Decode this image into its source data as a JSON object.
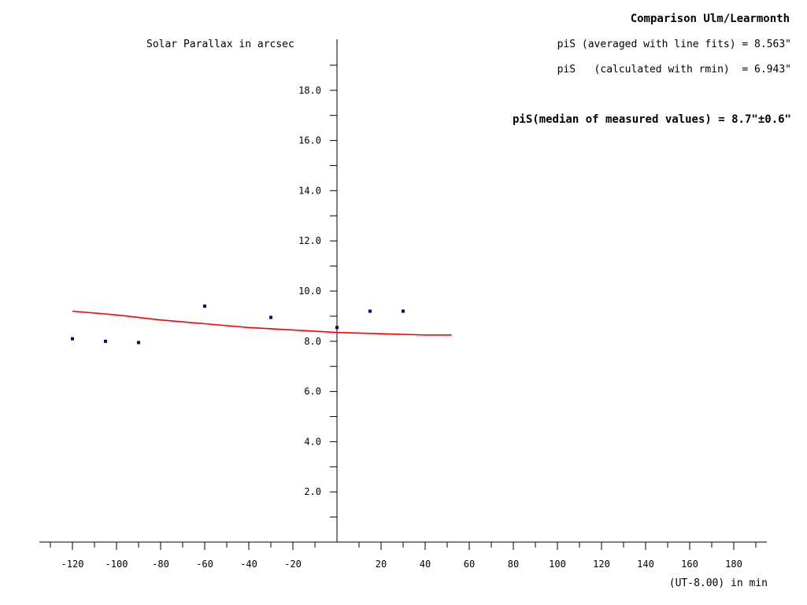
{
  "chart_data": {
    "type": "scatter",
    "title": "Comparison Ulm/Learmonth",
    "ylabel": "Solar Parallax in arcsec",
    "xlabel": "(UT-8.00) in min",
    "annotations": [
      "piS (averaged with line fits) = 8.563\"",
      "piS   (calculated with rmin)  = 6.943\"",
      "piS(median of measured values) = 8.7\"±0.6\""
    ],
    "xlim": [
      -135,
      195
    ],
    "ylim": [
      0,
      20
    ],
    "x_ticks": [
      -120,
      -100,
      -80,
      -60,
      -40,
      -20,
      20,
      40,
      60,
      80,
      100,
      120,
      140,
      160,
      180
    ],
    "x_tick_labels": [
      "-120",
      "-100",
      "-80",
      "-60",
      "-40",
      "-20",
      "20",
      "40",
      "60",
      "80",
      "100",
      "120",
      "140",
      "160",
      "180"
    ],
    "y_ticks": [
      2,
      4,
      6,
      8,
      10,
      12,
      14,
      16,
      18
    ],
    "y_tick_labels": [
      "2.0",
      "4.0",
      "6.0",
      "8.0",
      "10.0",
      "12.0",
      "14.0",
      "16.0",
      "18.0"
    ],
    "grid": false,
    "series": [
      {
        "kind": "points",
        "color": "#00008b",
        "x": [
          -120,
          -105,
          -90,
          -60,
          -30,
          0,
          15,
          30
        ],
        "y": [
          8.1,
          8.0,
          7.95,
          9.4,
          8.95,
          8.55,
          9.2,
          9.2
        ]
      },
      {
        "kind": "line",
        "color": "#ff0000",
        "x": [
          -120,
          -100,
          -80,
          -60,
          -40,
          -20,
          0,
          20,
          40,
          52
        ],
        "y": [
          9.2,
          9.05,
          8.85,
          8.7,
          8.55,
          8.45,
          8.35,
          8.3,
          8.25,
          8.25
        ]
      }
    ]
  }
}
